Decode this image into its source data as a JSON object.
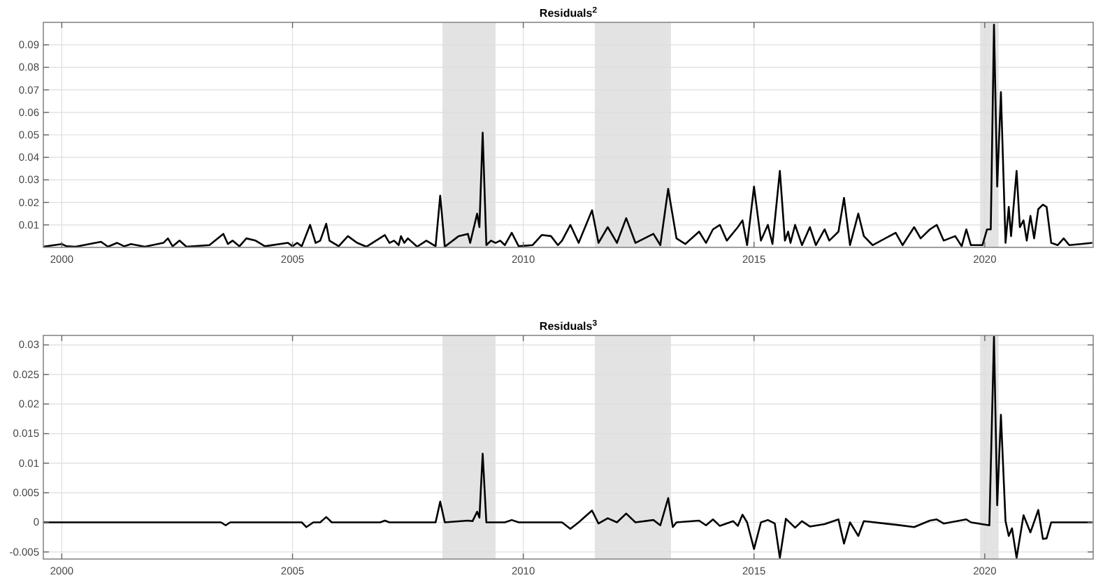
{
  "chart_data": [
    {
      "type": "line",
      "title": "Residuals$^{2}$",
      "xlim": [
        1999.6,
        2022.35
      ],
      "xticks": [
        2000,
        2005,
        2010,
        2015,
        2020
      ],
      "ylim": [
        0,
        0.1
      ],
      "yticks": [
        0.01,
        0.02,
        0.03,
        0.04,
        0.05,
        0.06,
        0.07,
        0.08,
        0.09
      ],
      "grid": true,
      "line_style": "solid",
      "marker": "none",
      "bands": [
        {
          "axis": "x",
          "from": 2008.25,
          "to": 2009.4,
          "color": "#e3e3e3"
        },
        {
          "axis": "x",
          "from": 2011.55,
          "to": 2013.2,
          "color": "#e3e3e3"
        },
        {
          "axis": "x",
          "from": 2019.9,
          "to": 2020.3,
          "color": "#e3e3e3"
        }
      ],
      "series": [
        {
          "color": "#000000",
          "x": [
            1999.6,
            2000.0,
            2000.1,
            2000.3,
            2000.85,
            2001.0,
            2001.2,
            2001.35,
            2001.5,
            2001.8,
            2002.2,
            2002.3,
            2002.4,
            2002.55,
            2002.7,
            2003.2,
            2003.5,
            2003.6,
            2003.7,
            2003.85,
            2004.0,
            2004.2,
            2004.4,
            2004.9,
            2005.0,
            2005.1,
            2005.2,
            2005.38,
            2005.5,
            2005.6,
            2005.73,
            2005.8,
            2006.0,
            2006.2,
            2006.4,
            2006.6,
            2007.0,
            2007.1,
            2007.2,
            2007.3,
            2007.35,
            2007.42,
            2007.5,
            2007.7,
            2007.9,
            2008.1,
            2008.2,
            2008.3,
            2008.6,
            2008.8,
            2008.85,
            2009.0,
            2009.05,
            2009.12,
            2009.2,
            2009.3,
            2009.4,
            2009.5,
            2009.6,
            2009.75,
            2009.9,
            2010.2,
            2010.4,
            2010.6,
            2010.75,
            2010.84,
            2011.02,
            2011.2,
            2011.49,
            2011.63,
            2011.83,
            2012.03,
            2012.23,
            2012.43,
            2012.82,
            2012.97,
            2013.14,
            2013.32,
            2013.51,
            2013.81,
            2013.96,
            2014.11,
            2014.26,
            2014.41,
            2014.65,
            2014.75,
            2014.85,
            2015.0,
            2015.15,
            2015.3,
            2015.4,
            2015.56,
            2015.67,
            2015.74,
            2015.79,
            2015.89,
            2016.04,
            2016.21,
            2016.34,
            2016.53,
            2016.63,
            2016.83,
            2016.95,
            2017.08,
            2017.26,
            2017.38,
            2017.57,
            2018.07,
            2018.22,
            2018.47,
            2018.61,
            2018.81,
            2018.96,
            2019.11,
            2019.36,
            2019.5,
            2019.6,
            2019.7,
            2019.95,
            2020.05,
            2020.13,
            2020.2,
            2020.27,
            2020.35,
            2020.45,
            2020.52,
            2020.57,
            2020.69,
            2020.76,
            2020.84,
            2020.91,
            2020.99,
            2021.07,
            2021.16,
            2021.26,
            2021.34,
            2021.44,
            2021.58,
            2021.71,
            2021.83,
            2022.08,
            2022.33
          ],
          "values": [
            0.0003,
            0.0015,
            0.0005,
            0.0003,
            0.0025,
            0.0003,
            0.002,
            0.0005,
            0.0015,
            0.0003,
            0.002,
            0.004,
            0.0005,
            0.003,
            0.0003,
            0.001,
            0.006,
            0.0015,
            0.003,
            0.0005,
            0.004,
            0.003,
            0.0005,
            0.002,
            0.0005,
            0.002,
            0.0005,
            0.01,
            0.002,
            0.003,
            0.0105,
            0.003,
            0.0005,
            0.005,
            0.002,
            0.0003,
            0.0055,
            0.002,
            0.003,
            0.001,
            0.005,
            0.002,
            0.004,
            0.0003,
            0.003,
            0.0005,
            0.023,
            0.0003,
            0.005,
            0.006,
            0.002,
            0.015,
            0.009,
            0.051,
            0.001,
            0.003,
            0.002,
            0.003,
            0.001,
            0.0065,
            0.0005,
            0.001,
            0.0055,
            0.005,
            0.001,
            0.003,
            0.01,
            0.002,
            0.0165,
            0.002,
            0.009,
            0.002,
            0.013,
            0.002,
            0.006,
            0.001,
            0.026,
            0.004,
            0.0015,
            0.007,
            0.002,
            0.008,
            0.01,
            0.003,
            0.009,
            0.012,
            0.001,
            0.027,
            0.003,
            0.01,
            0.0015,
            0.034,
            0.003,
            0.007,
            0.002,
            0.01,
            0.001,
            0.009,
            0.001,
            0.008,
            0.003,
            0.007,
            0.022,
            0.001,
            0.015,
            0.005,
            0.001,
            0.0065,
            0.001,
            0.009,
            0.004,
            0.008,
            0.01,
            0.003,
            0.005,
            0.0005,
            0.008,
            0.001,
            0.001,
            0.008,
            0.008,
            0.099,
            0.027,
            0.069,
            0.002,
            0.018,
            0.005,
            0.034,
            0.009,
            0.012,
            0.003,
            0.014,
            0.004,
            0.017,
            0.019,
            0.018,
            0.002,
            0.001,
            0.004,
            0.001,
            0.0015,
            0.002
          ]
        }
      ]
    },
    {
      "type": "line",
      "title": "Residuals$^{3}$",
      "xlim": [
        1999.6,
        2022.35
      ],
      "xticks": [
        2000,
        2005,
        2010,
        2015,
        2020
      ],
      "ylim": [
        -0.0062,
        0.0316
      ],
      "yticks": [
        -0.005,
        0,
        0.005,
        0.01,
        0.015,
        0.02,
        0.025,
        0.03
      ],
      "grid": true,
      "line_style": "solid",
      "marker": "none",
      "bands": [
        {
          "axis": "x",
          "from": 2008.25,
          "to": 2009.4,
          "color": "#e3e3e3"
        },
        {
          "axis": "x",
          "from": 2011.55,
          "to": 2013.2,
          "color": "#e3e3e3"
        },
        {
          "axis": "x",
          "from": 2019.9,
          "to": 2020.3,
          "color": "#e3e3e3"
        }
      ],
      "series": [
        {
          "color": "#000000",
          "x": [
            1999.6,
            2003.45,
            2003.55,
            2003.65,
            2005.2,
            2005.3,
            2005.45,
            2005.6,
            2005.73,
            2005.85,
            2006.9,
            2007.0,
            2007.1,
            2008.1,
            2008.2,
            2008.3,
            2008.8,
            2008.9,
            2009.0,
            2009.05,
            2009.12,
            2009.2,
            2009.6,
            2009.75,
            2009.9,
            2010.84,
            2011.02,
            2011.2,
            2011.49,
            2011.63,
            2011.83,
            2012.03,
            2012.23,
            2012.43,
            2012.82,
            2012.97,
            2013.14,
            2013.24,
            2013.32,
            2013.81,
            2013.96,
            2014.11,
            2014.26,
            2014.55,
            2014.65,
            2014.75,
            2014.85,
            2015.0,
            2015.15,
            2015.3,
            2015.45,
            2015.56,
            2015.69,
            2015.89,
            2016.04,
            2016.21,
            2016.53,
            2016.83,
            2016.95,
            2017.08,
            2017.26,
            2017.38,
            2018.07,
            2018.47,
            2018.81,
            2018.96,
            2019.11,
            2019.6,
            2019.7,
            2020.1,
            2020.2,
            2020.27,
            2020.35,
            2020.45,
            2020.52,
            2020.59,
            2020.69,
            2020.84,
            2020.99,
            2021.16,
            2021.26,
            2021.34,
            2021.44,
            2022.33
          ],
          "values": [
            0,
            0,
            -0.0005,
            0,
            0,
            -0.0008,
            0,
            0,
            0.0009,
            0,
            0,
            0.0003,
            0,
            0,
            0.0035,
            0,
            0.0003,
            0.0002,
            0.0018,
            0.0008,
            0.0116,
            0,
            0,
            0.0004,
            0,
            0,
            -0.0011,
            0,
            0.002,
            -0.0002,
            0.0007,
            0,
            0.0015,
            0,
            0.0004,
            -0.0005,
            0.0041,
            -0.0008,
            0,
            0.0003,
            -0.0005,
            0.0005,
            -0.0006,
            0.0002,
            -0.0006,
            0.0013,
            0,
            -0.0045,
            0,
            0.0004,
            -0.0002,
            -0.006,
            0.0006,
            -0.0009,
            0.0002,
            -0.0007,
            -0.0003,
            0.0005,
            -0.0036,
            0,
            -0.0023,
            0.0002,
            -0.0004,
            -0.0008,
            0.0003,
            0.0005,
            -0.0002,
            0.0005,
            0,
            -0.0005,
            0.0314,
            0.0029,
            0.0182,
            0.0002,
            -0.0023,
            -0.001,
            -0.006,
            0.0012,
            -0.0017,
            0.0021,
            -0.0028,
            -0.0027,
            0,
            0
          ]
        }
      ]
    }
  ]
}
